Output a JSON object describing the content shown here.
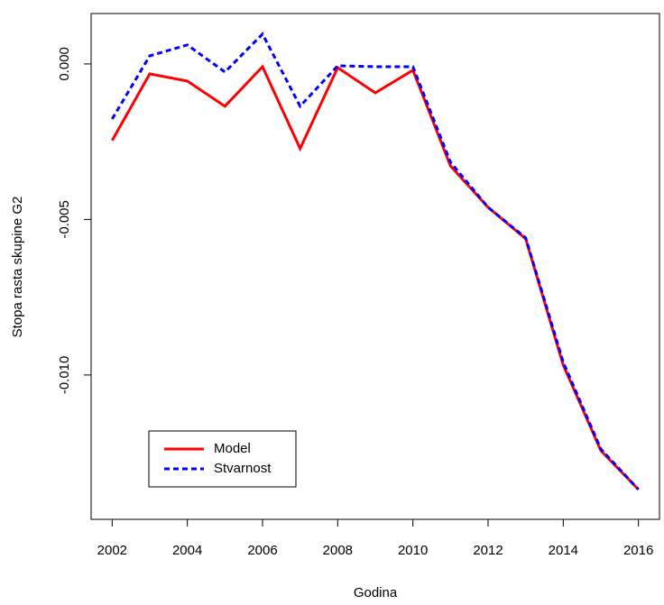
{
  "chart_data": {
    "type": "line",
    "xlabel": "Godina",
    "ylabel": "Stopa rasta skupine G2",
    "x": [
      2002,
      2003,
      2004,
      2005,
      2006,
      2007,
      2008,
      2009,
      2010,
      2011,
      2012,
      2013,
      2014,
      2015,
      2016
    ],
    "series": [
      {
        "name": "Model",
        "color": "#ff0000",
        "linestyle": "solid",
        "values": [
          -0.00246,
          -0.00032,
          -0.00055,
          -0.00136,
          -9e-05,
          -0.00272,
          -0.00012,
          -0.00093,
          -0.0002,
          -0.00328,
          -0.00461,
          -0.00562,
          -0.00968,
          -0.01243,
          -0.01368
        ]
      },
      {
        "name": "Stvarnost",
        "color": "#0000ff",
        "linestyle": "dashed",
        "values": [
          -0.00177,
          0.00026,
          0.00061,
          -0.00026,
          0.00096,
          -0.00136,
          -6e-05,
          -9e-05,
          -9e-05,
          -0.00316,
          -0.00461,
          -0.00559,
          -0.00959,
          -0.01238,
          -0.01368
        ]
      }
    ],
    "xlim": [
      2001.44,
      2016.56
    ],
    "xticks": [
      2002,
      2004,
      2006,
      2008,
      2010,
      2012,
      2014,
      2016
    ],
    "ylim": [
      -0.01464,
      0.00162
    ],
    "yticks": [
      {
        "value": -0.01,
        "label": "-0.010"
      },
      {
        "value": -0.005,
        "label": "-0.005"
      },
      {
        "value": 0,
        "label": "0.000"
      }
    ],
    "grid": false,
    "legend": "bottomleft"
  }
}
